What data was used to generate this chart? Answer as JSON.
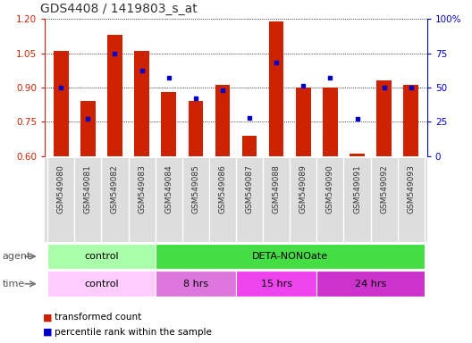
{
  "title": "GDS4408 / 1419803_s_at",
  "samples": [
    "GSM549080",
    "GSM549081",
    "GSM549082",
    "GSM549083",
    "GSM549084",
    "GSM549085",
    "GSM549086",
    "GSM549087",
    "GSM549088",
    "GSM549089",
    "GSM549090",
    "GSM549091",
    "GSM549092",
    "GSM549093"
  ],
  "red_values": [
    1.06,
    0.84,
    1.13,
    1.06,
    0.88,
    0.84,
    0.91,
    0.69,
    1.19,
    0.9,
    0.9,
    0.61,
    0.93,
    0.91
  ],
  "blue_values": [
    50,
    27,
    75,
    62,
    57,
    42,
    48,
    28,
    68,
    51,
    57,
    27,
    50,
    50
  ],
  "ylim_left": [
    0.6,
    1.2
  ],
  "ylim_right": [
    0,
    100
  ],
  "yticks_left": [
    0.6,
    0.75,
    0.9,
    1.05,
    1.2
  ],
  "yticks_right": [
    0,
    25,
    50,
    75,
    100
  ],
  "ytick_labels_right": [
    "0",
    "25",
    "50",
    "75",
    "100%"
  ],
  "bar_color": "#cc2200",
  "dot_color": "#0000cc",
  "bar_bottom": 0.6,
  "agent_groups": [
    {
      "label": "control",
      "start": 0,
      "end": 4,
      "color": "#aaffaa"
    },
    {
      "label": "DETA-NONOate",
      "start": 4,
      "end": 14,
      "color": "#44dd44"
    }
  ],
  "time_groups": [
    {
      "label": "control",
      "start": 0,
      "end": 4,
      "color": "#ffccff"
    },
    {
      "label": "8 hrs",
      "start": 4,
      "end": 7,
      "color": "#dd77dd"
    },
    {
      "label": "15 hrs",
      "start": 7,
      "end": 10,
      "color": "#ee44ee"
    },
    {
      "label": "24 hrs",
      "start": 10,
      "end": 14,
      "color": "#cc33cc"
    }
  ],
  "legend_red": "transformed count",
  "legend_blue": "percentile rank within the sample",
  "title_color": "#333333",
  "left_axis_color": "#cc2200",
  "right_axis_color": "#0000cc",
  "xtick_bg_color": "#dddddd",
  "bar_width": 0.55
}
